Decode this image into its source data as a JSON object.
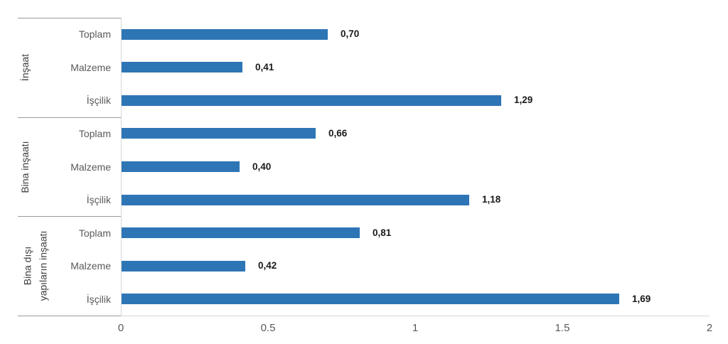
{
  "chart_data": {
    "type": "bar",
    "orientation": "horizontal",
    "title": "",
    "xlabel": "",
    "ylabel": "",
    "xlim": [
      0,
      2
    ],
    "grid": false,
    "legend": "none",
    "x_ticks": [
      {
        "value": 0,
        "label": "0"
      },
      {
        "value": 0.5,
        "label": "0.5"
      },
      {
        "value": 1,
        "label": "1"
      },
      {
        "value": 1.5,
        "label": "1.5"
      },
      {
        "value": 2,
        "label": "2"
      }
    ],
    "groups": [
      {
        "label": "İnşaat",
        "rows": [
          {
            "category": "Toplam",
            "value": 0.7,
            "value_label": "0,70"
          },
          {
            "category": "Malzeme",
            "value": 0.41,
            "value_label": "0,41"
          },
          {
            "category": "İşçilik",
            "value": 1.29,
            "value_label": "1,29"
          }
        ]
      },
      {
        "label": "Bina inşaatı",
        "rows": [
          {
            "category": "Toplam",
            "value": 0.66,
            "value_label": "0,66"
          },
          {
            "category": "Malzeme",
            "value": 0.4,
            "value_label": "0,40"
          },
          {
            "category": "İşçilik",
            "value": 1.18,
            "value_label": "1,18"
          }
        ]
      },
      {
        "label": "Bina dışı\nyapıların inşaatı",
        "rows": [
          {
            "category": "Toplam",
            "value": 0.81,
            "value_label": "0,81"
          },
          {
            "category": "Malzeme",
            "value": 0.42,
            "value_label": "0,42"
          },
          {
            "category": "İşçilik",
            "value": 1.69,
            "value_label": "1,69"
          }
        ]
      }
    ],
    "colors": {
      "bar": "#2E75B6",
      "value_label": "#1a1a1a",
      "category_label": "#595959",
      "group_label": "#404040",
      "tick_label": "#595959",
      "separator_line": "#9b9b9b",
      "axis_line": "#d6d6d6"
    }
  }
}
